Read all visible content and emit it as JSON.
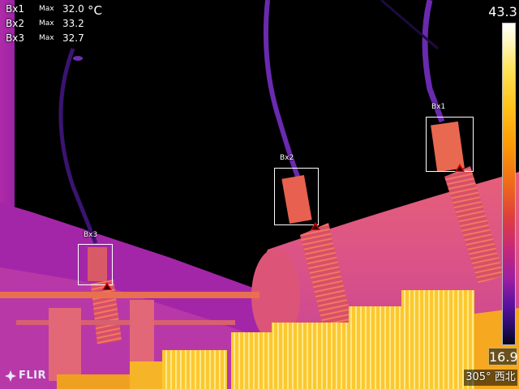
{
  "measurements": [
    {
      "label": "Bx1",
      "stat": "Max",
      "value": "32.0"
    },
    {
      "label": "Bx2",
      "stat": "Max",
      "value": "33.2"
    },
    {
      "label": "Bx3",
      "stat": "Max",
      "value": "32.7"
    }
  ],
  "unit": "°C",
  "boxes": [
    {
      "label": "Bx1"
    },
    {
      "label": "Bx2"
    },
    {
      "label": "Bx3"
    }
  ],
  "scale": {
    "max": "43.3",
    "min": "16.9",
    "palette": "iron"
  },
  "logo": {
    "text": "FLIR"
  },
  "compass": {
    "text": "305° 西北"
  },
  "colors": {
    "background": "#000000",
    "transformer_body": "#d45a9a",
    "bushing": "#e6605a",
    "radiator_fins": "#fbd030",
    "hot_spot_marker": "#e00000",
    "overlay_text": "#ffffff"
  }
}
